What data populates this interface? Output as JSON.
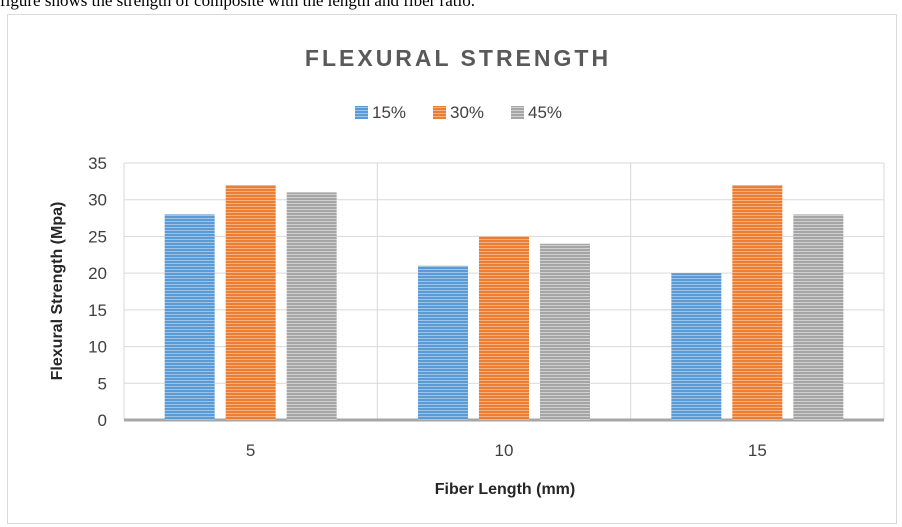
{
  "caption": "figure shows the strength of composite with the length and fiber ratio.",
  "chart_data": {
    "type": "bar",
    "title": "FLEXURAL STRENGTH",
    "xlabel": "Fiber Length (mm)",
    "ylabel": "Flexural Strength (Mpa)",
    "categories": [
      "5",
      "10",
      "15"
    ],
    "series": [
      {
        "name": "15%",
        "values": [
          28,
          21,
          20
        ],
        "color": "#5b9bd5"
      },
      {
        "name": "30%",
        "values": [
          32,
          25,
          32
        ],
        "color": "#ed7d31"
      },
      {
        "name": "45%",
        "values": [
          31,
          24,
          28
        ],
        "color": "#a5a5a5"
      }
    ],
    "ylim": [
      0,
      35
    ],
    "yticks": [
      0,
      5,
      10,
      15,
      20,
      25,
      30,
      35
    ],
    "legend_position": "top",
    "grid": true
  }
}
